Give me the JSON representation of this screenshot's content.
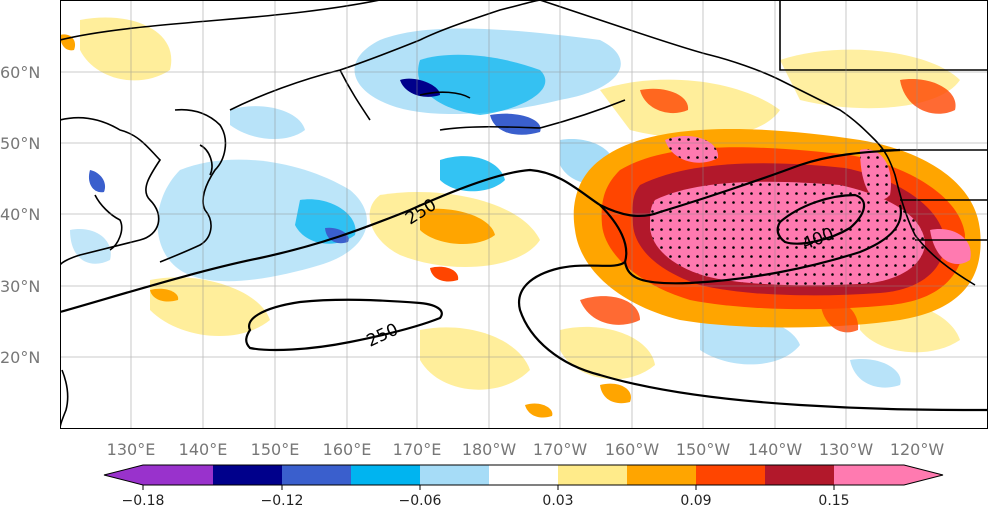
{
  "map": {
    "lat_labels": [
      "60°N",
      "50°N",
      "40°N",
      "30°N",
      "20°N"
    ],
    "lon_labels": [
      "130°E",
      "140°E",
      "150°E",
      "160°E",
      "170°E",
      "180°W",
      "170°W",
      "160°W",
      "150°W",
      "140°W",
      "130°W",
      "120°W"
    ],
    "contour_labels": [
      "250",
      "250",
      "400"
    ],
    "shading_colors": {
      "pink": "#ff7ab0",
      "darkred": "#b2182b",
      "red": "#ff4500",
      "orange": "#ffa500",
      "yellow": "#ffeb8a",
      "lightblue": "#a6dcf7",
      "cyan": "#00b4f0",
      "blue": "#3a5fcd",
      "navy": "#00008b",
      "purple": "#9932cc"
    }
  },
  "colorbar": {
    "tick_labels": [
      "−0.18",
      "−0.12",
      "−0.06",
      "0.03",
      "0.09",
      "0.15"
    ],
    "colors": [
      "#9932cc",
      "#00008b",
      "#3a5fcd",
      "#00b4f0",
      "#a6dcf7",
      "#ffffff",
      "#ffeb8a",
      "#ffa500",
      "#ff4500",
      "#b2182b",
      "#ff7ab0"
    ]
  }
}
